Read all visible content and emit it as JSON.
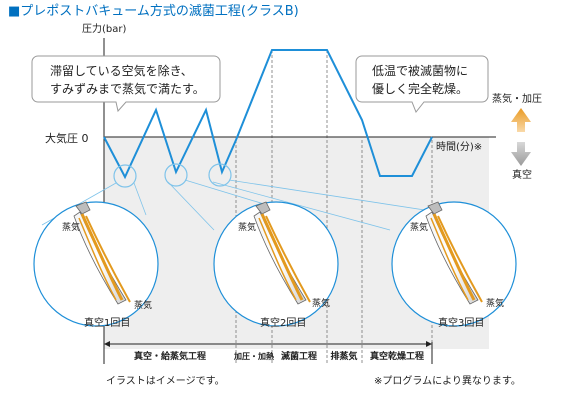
{
  "title": "■プレポストバキューム方式の滅菌工程(クラスB)",
  "axes": {
    "y_label": "圧力(bar)",
    "x_label": "時間(分)※",
    "baseline_label": "大気圧 0"
  },
  "side": {
    "up_label": "蒸気・加圧",
    "down_label": "真空"
  },
  "callouts": {
    "left": [
      "滞留している空気を除き、",
      "すみずみまで蒸気で満たす。"
    ],
    "right": [
      "低温で被滅菌物に",
      "優しく完全乾燥。"
    ]
  },
  "handpieces": [
    {
      "steam_top": "蒸気",
      "steam_bottom": "蒸気",
      "label": "真空1回目"
    },
    {
      "steam_top": "蒸気",
      "steam_bottom": "蒸気",
      "label": "真空2回目"
    },
    {
      "steam_top": "蒸気",
      "steam_bottom": "蒸気",
      "label": "真空3回目"
    }
  ],
  "phases": [
    "真空・給蒸気工程",
    "加圧・加熱",
    "滅菌工程",
    "排蒸気",
    "真空乾燥工程"
  ],
  "footer": {
    "left": "イラストはイメージです。",
    "right": "※プログラムにより異なります。"
  },
  "colors": {
    "title": "#0070c0",
    "line": "#1e8fd8",
    "orange": "#e39a1f",
    "gray_fill": "#efefef"
  }
}
